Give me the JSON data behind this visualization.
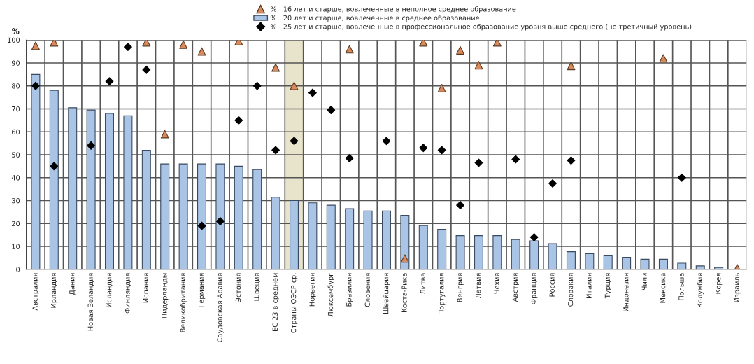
{
  "chart_data": {
    "type": "bar",
    "ylabel": "%",
    "categories": [
      "Австралия",
      "Ирландия",
      "Дания",
      "Новая Зеландия",
      "Исландия",
      "Финляндия",
      "Испания",
      "Нидерланды",
      "Великобритания",
      "Германия",
      "Саудовская Аравия",
      "Эстония",
      "Швеция",
      "ЕС 23 в среднем",
      "Страны ОЭСР ср.",
      "Норвегия",
      "Люксембург",
      "Бразилия",
      "Словения",
      "Швейцария",
      "Коста-Рика",
      "Литва",
      "Португалия",
      "Венгрия",
      "Латвия",
      "Чехия",
      "Австрия",
      "Франция",
      "Россия",
      "Словакия",
      "Италия",
      "Турция",
      "Индонезия",
      "Чили",
      "Мексика",
      "Польша",
      "Колумбия",
      "Корея",
      "Израиль"
    ],
    "series": [
      {
        "type": "scatter",
        "marker": "triangle",
        "name": "%   16 лет и старше, вовлеченные в неполное среднее образование",
        "color": "#d9895c",
        "values": [
          97.5,
          99,
          null,
          null,
          null,
          null,
          99,
          59,
          98,
          95,
          null,
          99.5,
          null,
          88,
          80,
          null,
          null,
          96,
          null,
          null,
          4.7,
          99,
          79,
          95.5,
          89,
          99,
          null,
          null,
          null,
          88.7,
          null,
          null,
          null,
          null,
          92,
          null,
          null,
          null,
          0.5
        ]
      },
      {
        "name": "%   20 лет и старше, вовлеченные в среднее образование",
        "color": "#a9c4e4",
        "values": [
          85,
          78,
          70.5,
          69.5,
          68,
          67,
          52,
          46,
          46,
          46,
          46,
          45,
          43.5,
          31.5,
          30,
          29,
          28,
          26.5,
          25.5,
          25.5,
          23.6,
          19.1,
          17.5,
          14.7,
          14.7,
          14.7,
          13,
          12.4,
          11.2,
          7.7,
          6.8,
          5.9,
          5.3,
          4.4,
          4.4,
          2.7,
          1.5,
          0.8,
          null
        ]
      },
      {
        "type": "scatter",
        "marker": "diamond",
        "name": "%   25 лет и старше, вовлеченные в профессиональное образование уровня выше среднего (не третичный уровень)",
        "color": "#000000",
        "values": [
          80,
          45,
          null,
          54,
          82,
          97,
          87,
          null,
          null,
          19,
          21,
          65,
          80,
          52,
          56,
          77,
          69.5,
          48.5,
          null,
          56,
          null,
          53,
          52,
          28,
          46.5,
          null,
          48,
          14,
          37.5,
          47.5,
          null,
          null,
          null,
          null,
          null,
          40,
          null,
          null,
          null
        ]
      }
    ],
    "ylim": [
      0,
      100
    ],
    "yticks": [
      0,
      10,
      20,
      30,
      40,
      50,
      60,
      70,
      80,
      90,
      100
    ],
    "bands": [
      {
        "axis": "x",
        "from": "Страны ОЭСР ср.",
        "to": "Страны ОЭСР ср.",
        "color": "#e8e4cc"
      }
    ],
    "grid": true,
    "legend": "top"
  }
}
